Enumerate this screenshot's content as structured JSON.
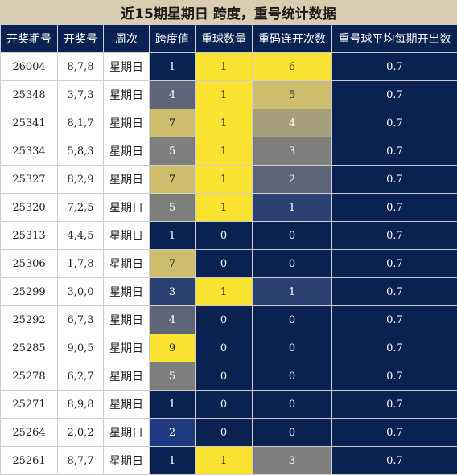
{
  "title": "近15期星期日 跨度，重号统计数据",
  "headers": [
    "开奖期号",
    "开奖号",
    "周次",
    "跨度值",
    "重球数量",
    "重码连开次数",
    "重号球平均每期开出数"
  ],
  "rows": [
    {
      "issue": "26004",
      "numbers": "8,7,8",
      "weekday": "星期日",
      "span": "1",
      "repeat": "1",
      "streak": "6",
      "avg": "0.7"
    },
    {
      "issue": "25348",
      "numbers": "3,7,3",
      "weekday": "星期日",
      "span": "4",
      "repeat": "1",
      "streak": "5",
      "avg": "0.7"
    },
    {
      "issue": "25341",
      "numbers": "8,1,7",
      "weekday": "星期日",
      "span": "7",
      "repeat": "1",
      "streak": "4",
      "avg": "0.7"
    },
    {
      "issue": "25334",
      "numbers": "5,8,3",
      "weekday": "星期日",
      "span": "5",
      "repeat": "1",
      "streak": "3",
      "avg": "0.7"
    },
    {
      "issue": "25327",
      "numbers": "8,2,9",
      "weekday": "星期日",
      "span": "7",
      "repeat": "1",
      "streak": "2",
      "avg": "0.7"
    },
    {
      "issue": "25320",
      "numbers": "7,2,5",
      "weekday": "星期日",
      "span": "5",
      "repeat": "1",
      "streak": "1",
      "avg": "0.7"
    },
    {
      "issue": "25313",
      "numbers": "4,4,5",
      "weekday": "星期日",
      "span": "1",
      "repeat": "0",
      "streak": "0",
      "avg": "0.7"
    },
    {
      "issue": "25306",
      "numbers": "1,7,8",
      "weekday": "星期日",
      "span": "7",
      "repeat": "0",
      "streak": "0",
      "avg": "0.7"
    },
    {
      "issue": "25299",
      "numbers": "3,0,0",
      "weekday": "星期日",
      "span": "3",
      "repeat": "1",
      "streak": "1",
      "avg": "0.7"
    },
    {
      "issue": "25292",
      "numbers": "6,7,3",
      "weekday": "星期日",
      "span": "4",
      "repeat": "0",
      "streak": "0",
      "avg": "0.7"
    },
    {
      "issue": "25285",
      "numbers": "9,0,5",
      "weekday": "星期日",
      "span": "9",
      "repeat": "0",
      "streak": "0",
      "avg": "0.7"
    },
    {
      "issue": "25278",
      "numbers": "6,2,7",
      "weekday": "星期日",
      "span": "5",
      "repeat": "0",
      "streak": "0",
      "avg": "0.7"
    },
    {
      "issue": "25271",
      "numbers": "8,9,8",
      "weekday": "星期日",
      "span": "1",
      "repeat": "0",
      "streak": "0",
      "avg": "0.7"
    },
    {
      "issue": "25264",
      "numbers": "2,0,2",
      "weekday": "星期日",
      "span": "2",
      "repeat": "0",
      "streak": "0",
      "avg": "0.7"
    },
    {
      "issue": "25261",
      "numbers": "8,7,7",
      "weekday": "星期日",
      "span": "1",
      "repeat": "1",
      "streak": "3",
      "avg": "0.7"
    }
  ],
  "colors": {
    "header_bg": "#0a2251",
    "title_bg": "#d9ccb0",
    "highlight_yellow": "#fbe331",
    "default_cell": "#0a2251"
  }
}
